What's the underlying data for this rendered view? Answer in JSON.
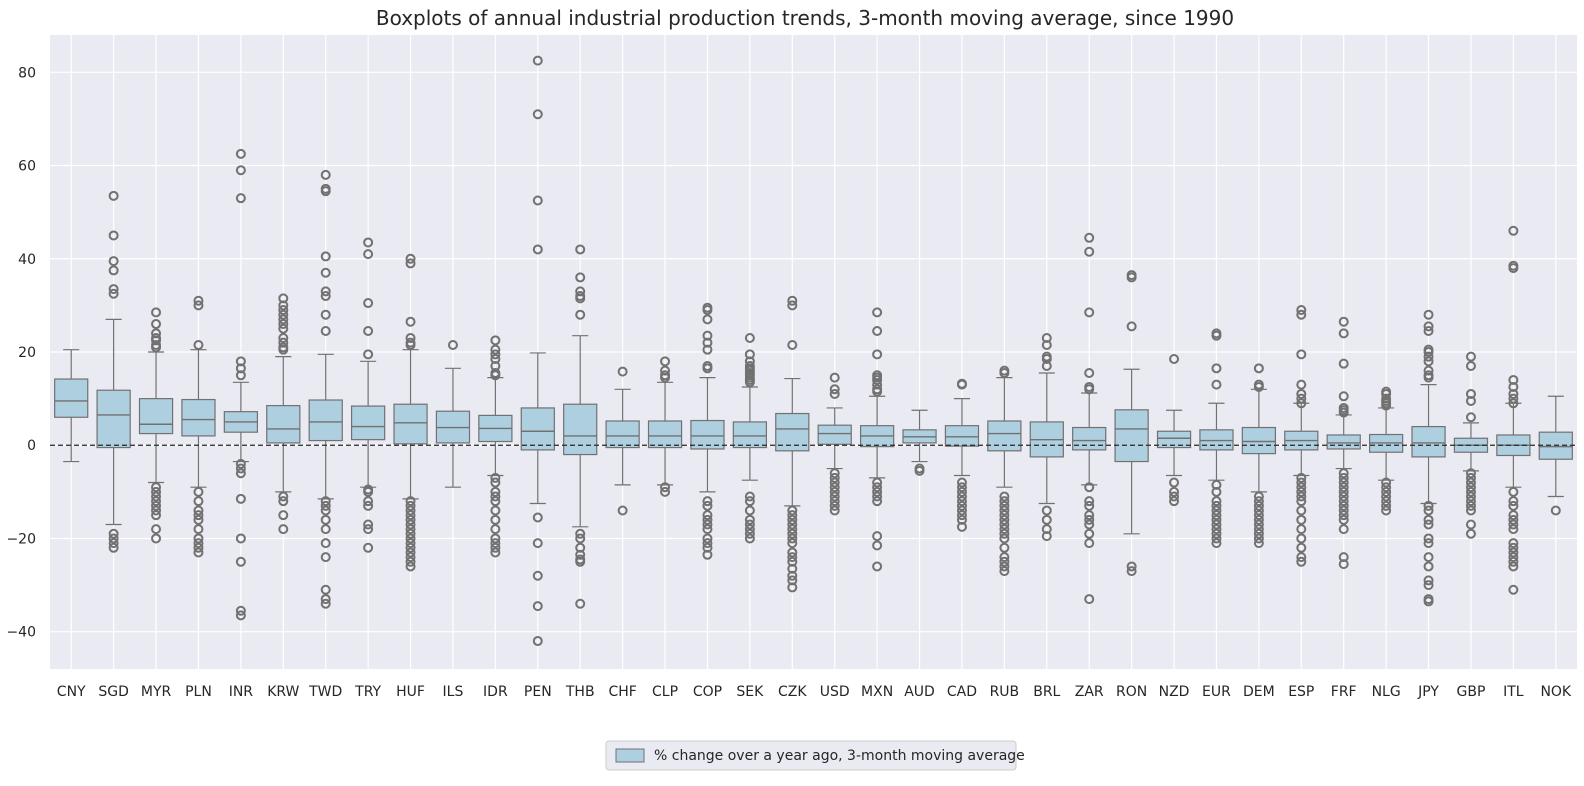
{
  "chart_data": {
    "type": "boxplot",
    "title": "Boxplots of annual industrial production trends, 3-month moving average, since 1990",
    "xlabel": "",
    "ylabel": "",
    "ylim": [
      -48,
      88
    ],
    "yticks": [
      -40,
      -20,
      0,
      20,
      40,
      60,
      80
    ],
    "reference_line": 0,
    "legend": {
      "label": "% change over a year ago, 3-month moving average",
      "placement": "bottom-center"
    },
    "colors": {
      "box_fill": "#aecfdf",
      "box_edge": "#717171",
      "plot_bg": "#eaeaf2",
      "grid": "#ffffff",
      "ref_line": "#262626"
    },
    "categories": [
      "CNY",
      "SGD",
      "MYR",
      "PLN",
      "INR",
      "KRW",
      "TWD",
      "TRY",
      "HUF",
      "ILS",
      "IDR",
      "PEN",
      "THB",
      "CHF",
      "CLP",
      "COP",
      "SEK",
      "CZK",
      "USD",
      "MXN",
      "AUD",
      "CAD",
      "RUB",
      "BRL",
      "ZAR",
      "RON",
      "NZD",
      "EUR",
      "DEM",
      "ESP",
      "FRF",
      "NLG",
      "JPY",
      "GBP",
      "ITL",
      "NOK"
    ],
    "boxes": [
      {
        "wl": -3.5,
        "q1": 6,
        "med": 9.5,
        "q3": 14.2,
        "wh": 20.5,
        "out": []
      },
      {
        "wl": -17,
        "q1": -0.5,
        "med": 6.5,
        "q3": 11.8,
        "wh": 27,
        "out": [
          53.5,
          45,
          39.5,
          37.5,
          33.5,
          32.5,
          -19,
          -20,
          -21,
          -22
        ]
      },
      {
        "wl": -8,
        "q1": 2.5,
        "med": 4.5,
        "q3": 10,
        "wh": 20,
        "out": [
          28.5,
          26,
          24,
          23,
          22.5,
          21.5,
          21,
          -9,
          -10,
          -11,
          -12,
          -13,
          -14,
          -15,
          -18,
          -20
        ]
      },
      {
        "wl": -9,
        "q1": 2,
        "med": 5.5,
        "q3": 9.8,
        "wh": 20.5,
        "out": [
          31,
          30,
          21.5,
          -10,
          -12,
          -14,
          -15,
          -16,
          -18,
          -20,
          -21,
          -22,
          -23
        ]
      },
      {
        "wl": -3.5,
        "q1": 2.8,
        "med": 5,
        "q3": 7.2,
        "wh": 13.5,
        "out": [
          62.5,
          59,
          53,
          18,
          16.5,
          15,
          -4,
          -5,
          -6,
          -11.5,
          -20,
          -25,
          -35.5,
          -36.5
        ]
      },
      {
        "wl": -10,
        "q1": 0.5,
        "med": 3.5,
        "q3": 8.5,
        "wh": 19,
        "out": [
          31.5,
          30,
          29,
          28,
          27,
          26,
          25,
          23,
          22,
          21,
          20.5,
          -11,
          -12,
          -15,
          -18
        ]
      },
      {
        "wl": -11.5,
        "q1": 1,
        "med": 5,
        "q3": 9.7,
        "wh": 19.5,
        "out": [
          58,
          55,
          54.5,
          40.5,
          37,
          33,
          32,
          28,
          24.5,
          -12,
          -13,
          -14,
          -16,
          -18,
          -21,
          -24,
          -31,
          -33,
          -34
        ]
      },
      {
        "wl": -9,
        "q1": 1.2,
        "med": 4,
        "q3": 8.4,
        "wh": 18,
        "out": [
          43.5,
          41,
          30.5,
          24.5,
          19.5,
          -9.5,
          -10,
          -12,
          -13,
          -17,
          -18,
          -22
        ]
      },
      {
        "wl": -11.5,
        "q1": 0.3,
        "med": 4.8,
        "q3": 8.8,
        "wh": 20.5,
        "out": [
          40,
          39,
          26.5,
          23,
          22,
          21.5,
          -12,
          -13,
          -14,
          -15,
          -16,
          -17,
          -18,
          -19,
          -20,
          -21,
          -22,
          -23,
          -24,
          -25,
          -26
        ]
      },
      {
        "wl": -9,
        "q1": 0.5,
        "med": 3.8,
        "q3": 7.3,
        "wh": 16.5,
        "out": [
          21.5
        ]
      },
      {
        "wl": -6.5,
        "q1": 0.8,
        "med": 3.6,
        "q3": 6.4,
        "wh": 14.5,
        "out": [
          22.5,
          20.5,
          19.5,
          18.5,
          17,
          15.5,
          15,
          -7,
          -8,
          -10,
          -11,
          -12,
          -14,
          -16,
          -18,
          -20,
          -21,
          -22,
          -23
        ]
      },
      {
        "wl": -12.5,
        "q1": -1,
        "med": 3,
        "q3": 8,
        "wh": 19.8,
        "out": [
          82.5,
          71,
          52.5,
          42,
          -15.5,
          -21,
          -28,
          -34.5,
          -42
        ]
      },
      {
        "wl": -17.5,
        "q1": -2,
        "med": 2,
        "q3": 8.8,
        "wh": 23.5,
        "out": [
          42,
          36,
          33,
          32,
          31.5,
          28,
          -19,
          -20,
          -22,
          -23.5,
          -24.5,
          -25,
          -34
        ]
      },
      {
        "wl": -8.5,
        "q1": -0.5,
        "med": 2,
        "q3": 5.2,
        "wh": 12,
        "out": [
          15.8,
          -14
        ]
      },
      {
        "wl": -8.5,
        "q1": -0.5,
        "med": 2,
        "q3": 5.2,
        "wh": 13.5,
        "out": [
          18,
          16,
          15,
          14.5,
          -9,
          -10
        ]
      },
      {
        "wl": -10,
        "q1": -0.8,
        "med": 2,
        "q3": 5.3,
        "wh": 14.5,
        "out": [
          29.5,
          29,
          27,
          23.5,
          22,
          20.5,
          17,
          16.5,
          -12,
          -13,
          -15,
          -16,
          -17,
          -18,
          -20,
          -21,
          -22,
          -23.5
        ]
      },
      {
        "wl": -7.5,
        "q1": -0.5,
        "med": 2,
        "q3": 5,
        "wh": 12.5,
        "out": [
          23,
          19.5,
          18,
          17,
          16.5,
          16,
          15.5,
          15,
          14.5,
          14,
          13.5,
          -11,
          -12,
          -14,
          -16,
          -17,
          -18,
          -19,
          -20
        ]
      },
      {
        "wl": -13,
        "q1": -1.2,
        "med": 3.5,
        "q3": 6.8,
        "wh": 14.3,
        "out": [
          31,
          30,
          21.5,
          -14,
          -15,
          -16,
          -17,
          -18,
          -19,
          -20,
          -21,
          -23,
          -24,
          -25,
          -26.5,
          -28,
          -29,
          -30.5
        ]
      },
      {
        "wl": -5,
        "q1": 0.2,
        "med": 2.5,
        "q3": 4.3,
        "wh": 8,
        "out": [
          14.5,
          12,
          11,
          -6,
          -7,
          -8,
          -9,
          -10,
          -11,
          -12,
          -13,
          -14
        ]
      },
      {
        "wl": -7,
        "q1": -0.3,
        "med": 2,
        "q3": 4.2,
        "wh": 10.5,
        "out": [
          28.5,
          24.5,
          19.5,
          15,
          14.5,
          14,
          13,
          12,
          11.5,
          -8,
          -9,
          -10,
          -11,
          -12,
          -19.5,
          -21.5,
          -26
        ]
      },
      {
        "wl": -3.5,
        "q1": 0.5,
        "med": 1.8,
        "q3": 3.3,
        "wh": 7.5,
        "out": [
          -5,
          -5.5
        ]
      },
      {
        "wl": -6.5,
        "q1": -0.2,
        "med": 1.8,
        "q3": 4.2,
        "wh": 10,
        "out": [
          13.2,
          13,
          -8,
          -9,
          -10,
          -11,
          -12,
          -13,
          -14,
          -15,
          -16,
          -17.5
        ]
      },
      {
        "wl": -9,
        "q1": -1.2,
        "med": 2.5,
        "q3": 5.2,
        "wh": 14.5,
        "out": [
          16,
          15.5,
          -11,
          -12,
          -13,
          -14,
          -15,
          -16,
          -17,
          -18,
          -19,
          -20,
          -22,
          -24,
          -25,
          -26,
          -27
        ]
      },
      {
        "wl": -12.5,
        "q1": -2.5,
        "med": 1.2,
        "q3": 5,
        "wh": 15.5,
        "out": [
          23,
          21.5,
          19,
          18.5,
          17,
          -14,
          -16,
          -18,
          -19.5
        ]
      },
      {
        "wl": -8.5,
        "q1": -1,
        "med": 1,
        "q3": 3.8,
        "wh": 11.2,
        "out": [
          44.5,
          41.5,
          28.5,
          15.5,
          12.5,
          12,
          -9,
          -12,
          -13,
          -15,
          -16,
          -17,
          -19,
          -21,
          -33
        ]
      },
      {
        "wl": -19,
        "q1": -3.5,
        "med": 3.5,
        "q3": 7.6,
        "wh": 16.3,
        "out": [
          36.5,
          36,
          25.5,
          -26,
          -27
        ]
      },
      {
        "wl": -6.5,
        "q1": -0.5,
        "med": 1.5,
        "q3": 3,
        "wh": 7.5,
        "out": [
          18.5,
          -8,
          -10,
          -11,
          -12
        ]
      },
      {
        "wl": -7.5,
        "q1": -1,
        "med": 1,
        "q3": 3.3,
        "wh": 9,
        "out": [
          24,
          23.5,
          16.5,
          13,
          -8.5,
          -10,
          -12,
          -13,
          -14,
          -15,
          -16,
          -17,
          -18,
          -19,
          -20,
          -21
        ]
      },
      {
        "wl": -10,
        "q1": -1.8,
        "med": 0.8,
        "q3": 3.8,
        "wh": 12,
        "out": [
          16.5,
          13,
          12.5,
          -11,
          -12,
          -13,
          -14,
          -15,
          -16,
          -17,
          -18,
          -19,
          -20,
          -21
        ]
      },
      {
        "wl": -6.5,
        "q1": -1,
        "med": 1,
        "q3": 3,
        "wh": 9,
        "out": [
          29,
          28,
          19.5,
          13,
          11,
          10,
          9,
          -7,
          -8,
          -9,
          -10,
          -11,
          -12,
          -14,
          -16,
          -18,
          -20,
          -22,
          -24,
          -25
        ]
      },
      {
        "wl": -5,
        "q1": -0.8,
        "med": 0.5,
        "q3": 2.2,
        "wh": 6.5,
        "out": [
          26.5,
          24,
          17.5,
          10.5,
          8,
          7.5,
          7,
          -6,
          -7,
          -8,
          -9,
          -10,
          -11,
          -12,
          -13,
          -14,
          -15,
          -16,
          -18,
          -24,
          -25.5
        ]
      },
      {
        "wl": -7.5,
        "q1": -1.5,
        "med": 0.5,
        "q3": 2.3,
        "wh": 8,
        "out": [
          11.5,
          11,
          10,
          9.5,
          9,
          8.5,
          -8,
          -9,
          -10,
          -11,
          -12,
          -13,
          -14
        ]
      },
      {
        "wl": -12.5,
        "q1": -2.5,
        "med": 0.5,
        "q3": 4,
        "wh": 13,
        "out": [
          28,
          25.5,
          24.5,
          20.5,
          20,
          19,
          18,
          16,
          15,
          14.5,
          -13,
          -14,
          -16,
          -17,
          -20,
          -21,
          -24,
          -26,
          -29,
          -30,
          -33,
          -33.5
        ]
      },
      {
        "wl": -5.5,
        "q1": -1.5,
        "med": 0,
        "q3": 1.5,
        "wh": 4.8,
        "out": [
          19,
          17,
          11,
          9.5,
          6,
          -6,
          -7,
          -8,
          -9,
          -10,
          -11,
          -12,
          -13,
          -14,
          -17,
          -19
        ]
      },
      {
        "wl": -9,
        "q1": -2.2,
        "med": 0,
        "q3": 2.2,
        "wh": 9,
        "out": [
          46,
          38.5,
          38,
          14,
          12.5,
          11,
          10,
          9,
          -10,
          -12,
          -13,
          -15,
          -16,
          -17,
          -18,
          -21,
          -22,
          -23,
          -24,
          -25,
          -26,
          -31
        ]
      },
      {
        "wl": -11,
        "q1": -3,
        "med": -0.3,
        "q3": 2.8,
        "wh": 10.5,
        "out": [
          -14
        ]
      }
    ]
  }
}
